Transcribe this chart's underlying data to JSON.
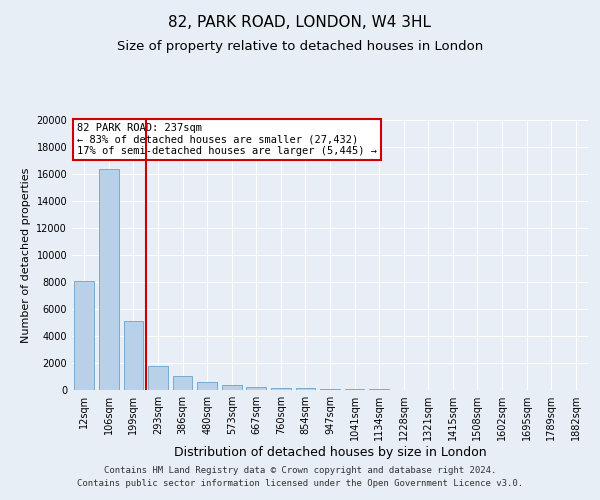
{
  "title": "82, PARK ROAD, LONDON, W4 3HL",
  "subtitle": "Size of property relative to detached houses in London",
  "xlabel": "Distribution of detached houses by size in London",
  "ylabel": "Number of detached properties",
  "categories": [
    "12sqm",
    "106sqm",
    "199sqm",
    "293sqm",
    "386sqm",
    "480sqm",
    "573sqm",
    "667sqm",
    "760sqm",
    "854sqm",
    "947sqm",
    "1041sqm",
    "1134sqm",
    "1228sqm",
    "1321sqm",
    "1415sqm",
    "1508sqm",
    "1602sqm",
    "1695sqm",
    "1789sqm",
    "1882sqm"
  ],
  "values": [
    8050,
    16400,
    5100,
    1800,
    1050,
    600,
    380,
    250,
    170,
    120,
    90,
    65,
    45,
    35,
    25,
    20,
    15,
    12,
    9,
    7,
    5
  ],
  "bar_color": "#b8d0e8",
  "bar_edge_color": "#7aaacf",
  "vline_x": 2.5,
  "vline_color": "#cc0000",
  "annotation_title": "82 PARK ROAD: 237sqm",
  "annotation_line1": "← 83% of detached houses are smaller (27,432)",
  "annotation_line2": "17% of semi-detached houses are larger (5,445) →",
  "annotation_box_facecolor": "#ffffff",
  "annotation_box_edgecolor": "#cc0000",
  "ylim": [
    0,
    20000
  ],
  "yticks": [
    0,
    2000,
    4000,
    6000,
    8000,
    10000,
    12000,
    14000,
    16000,
    18000,
    20000
  ],
  "background_color": "#e8eef5",
  "footer_line1": "Contains HM Land Registry data © Crown copyright and database right 2024.",
  "footer_line2": "Contains public sector information licensed under the Open Government Licence v3.0.",
  "title_fontsize": 11,
  "subtitle_fontsize": 9.5,
  "ylabel_fontsize": 8,
  "xlabel_fontsize": 9,
  "tick_fontsize": 7,
  "annotation_fontsize": 7.5,
  "footer_fontsize": 6.5
}
